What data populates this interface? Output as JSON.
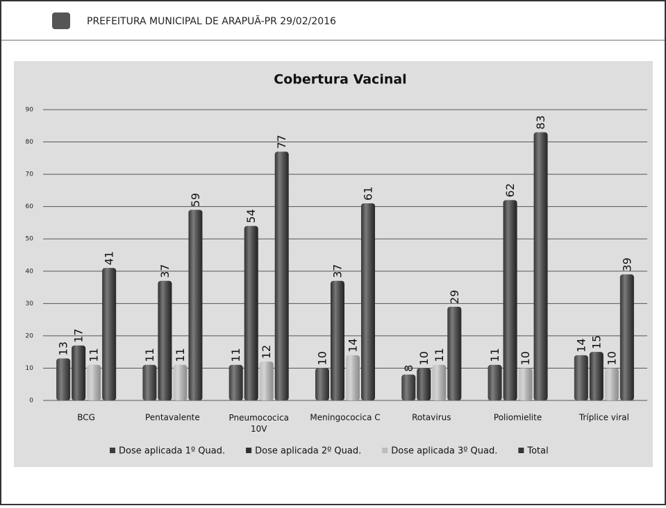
{
  "header": {
    "title": "PREFEITURA MUNICIPAL DE ARAPUÃ-PR 29/02/2016"
  },
  "chart_data": {
    "type": "bar",
    "title": "Cobertura Vacinal",
    "categories": [
      "BCG",
      "Pentavalente",
      "Pneumococica 10V",
      "Meningococica C",
      "Rotavirus",
      "Poliomielite",
      "Tríplice viral"
    ],
    "series": [
      {
        "name": "Dose aplicada 1º Quad.",
        "color": "#3c3c3c",
        "values": [
          13,
          11,
          11,
          10,
          8,
          11,
          14
        ]
      },
      {
        "name": "Dose aplicada 2º Quad.",
        "color": "#2f2f2f",
        "values": [
          17,
          37,
          54,
          37,
          10,
          62,
          15
        ]
      },
      {
        "name": "Dose aplicada 3º Quad.",
        "color": "#bdbdbd",
        "values": [
          11,
          11,
          12,
          14,
          11,
          10,
          10
        ]
      },
      {
        "name": "Total",
        "color": "#353535",
        "values": [
          41,
          59,
          77,
          61,
          29,
          83,
          39
        ]
      }
    ],
    "ylim": [
      0,
      90
    ],
    "yticks": [
      0,
      10,
      20,
      30,
      40,
      50,
      60,
      70,
      80,
      90
    ],
    "grid": true,
    "legend": "bottom"
  }
}
